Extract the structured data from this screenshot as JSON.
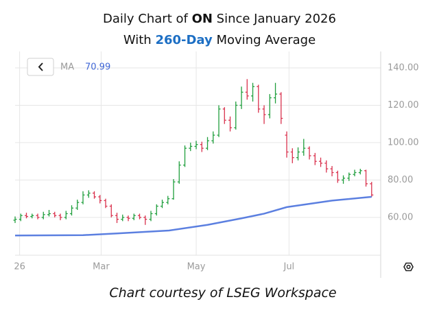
{
  "chart_data": {
    "type": "ohlc",
    "title": [
      "Daily Chart of ",
      "ON",
      " Since January 2026"
    ],
    "subtitle": [
      "With ",
      "260-Day",
      " Moving Average"
    ],
    "footer": "Chart courtesy of LSEG Workspace",
    "legend": {
      "name": "MA",
      "value": 70.99
    },
    "up_color": "#1f9e3c",
    "down_color": "#d9304c",
    "x": [
      0,
      2.5,
      5,
      7.5,
      10,
      12.5,
      15,
      17.5,
      20,
      22.5,
      25,
      27.5,
      30,
      32.5,
      35,
      37.5,
      40,
      42.5,
      45,
      47.5,
      50,
      52.5,
      55,
      57.5,
      60,
      62.5,
      65,
      67.5,
      70,
      72.5,
      75,
      77.5,
      80,
      82.5,
      85,
      87.5,
      90,
      92.5,
      95,
      97.5,
      100,
      102.5,
      105,
      107.5,
      110,
      112.5,
      115,
      117.5,
      120,
      122.5,
      125,
      127.5,
      130,
      132.5,
      135,
      137.5,
      140,
      142.5,
      145,
      147.5,
      150,
      152.5,
      155,
      157.5
    ],
    "open": [
      58.5,
      59,
      61,
      60.5,
      61,
      60,
      61.5,
      62,
      61,
      60,
      62,
      65,
      68,
      72,
      73,
      71,
      69,
      66,
      61,
      59,
      60,
      59.5,
      61,
      60,
      59,
      62,
      66,
      68,
      70,
      79,
      88,
      97,
      98,
      99,
      97,
      101,
      104,
      118,
      112,
      108,
      120,
      127,
      125,
      130,
      118,
      115,
      124,
      126,
      104,
      95,
      92,
      95,
      97,
      93,
      90,
      89,
      86,
      84,
      80,
      81,
      83,
      84,
      85,
      78
    ],
    "high": [
      60.5,
      62,
      62.5,
      62,
      62,
      63,
      64,
      63,
      62,
      63.5,
      66.5,
      69.5,
      74,
      74.5,
      74,
      72,
      70,
      67,
      62.5,
      61.5,
      61,
      62,
      62,
      61,
      63.5,
      67,
      69.5,
      71.5,
      80.5,
      90,
      98.5,
      100,
      101,
      100.5,
      103,
      106,
      120,
      119,
      114,
      122,
      130,
      134,
      132,
      131,
      120,
      126,
      132,
      127,
      106,
      97,
      97.5,
      102,
      98,
      94.5,
      92,
      90.5,
      87.5,
      85,
      82.5,
      84,
      85.5,
      86,
      85.5,
      79
    ],
    "low": [
      57,
      58,
      59.5,
      59.5,
      59,
      59,
      60.5,
      60,
      58.5,
      59,
      61,
      64,
      67,
      70.5,
      70,
      67.5,
      65,
      60,
      57,
      58,
      58,
      58.5,
      59,
      56,
      58,
      61,
      65,
      67,
      69.5,
      78,
      87,
      95.5,
      96.5,
      95,
      96,
      99.5,
      103,
      110,
      106,
      107,
      118,
      123,
      122,
      116,
      110,
      113,
      121,
      110,
      92,
      89,
      90.5,
      93,
      91,
      88,
      87,
      84,
      82,
      78.5,
      78,
      79.5,
      82,
      83,
      76.5,
      71
    ],
    "close": [
      59,
      61,
      60.5,
      61,
      60,
      61.5,
      62,
      61,
      60,
      62,
      65,
      68,
      72,
      73,
      71,
      69,
      66,
      61,
      59,
      60,
      59.5,
      61,
      60,
      59,
      62,
      66,
      68,
      70,
      79,
      88,
      97,
      98,
      99,
      97,
      101,
      104,
      118,
      112,
      108,
      120,
      127,
      125,
      130,
      118,
      115,
      124,
      126,
      113,
      95,
      92,
      95,
      97,
      93,
      90,
      89,
      86,
      84,
      80,
      81,
      83,
      84,
      85,
      78,
      72
    ],
    "ma": {
      "name": "MA",
      "color": "#5b7fe0",
      "x": [
        0,
        30,
        45,
        68,
        85,
        100,
        110,
        120,
        140,
        157.5
      ],
      "values": [
        50.3,
        50.5,
        51.4,
        53,
        56,
        59.5,
        62,
        65.5,
        69,
        71
      ]
    },
    "xlim": [
      0,
      161.5
    ],
    "xticks": [
      {
        "value": 2,
        "label": "26"
      },
      {
        "value": 38,
        "label": "Mar"
      },
      {
        "value": 80,
        "label": "May"
      },
      {
        "value": 121,
        "label": "Jul"
      }
    ],
    "ylim": [
      40.5,
      148.8
    ],
    "yticks": [
      {
        "value": 140,
        "label": "140.00"
      },
      {
        "value": 120,
        "label": "120.00"
      },
      {
        "value": 100,
        "label": "100.00"
      },
      {
        "value": 80,
        "label": "80.00"
      },
      {
        "value": 60,
        "label": "60.00"
      }
    ],
    "grid": true
  }
}
